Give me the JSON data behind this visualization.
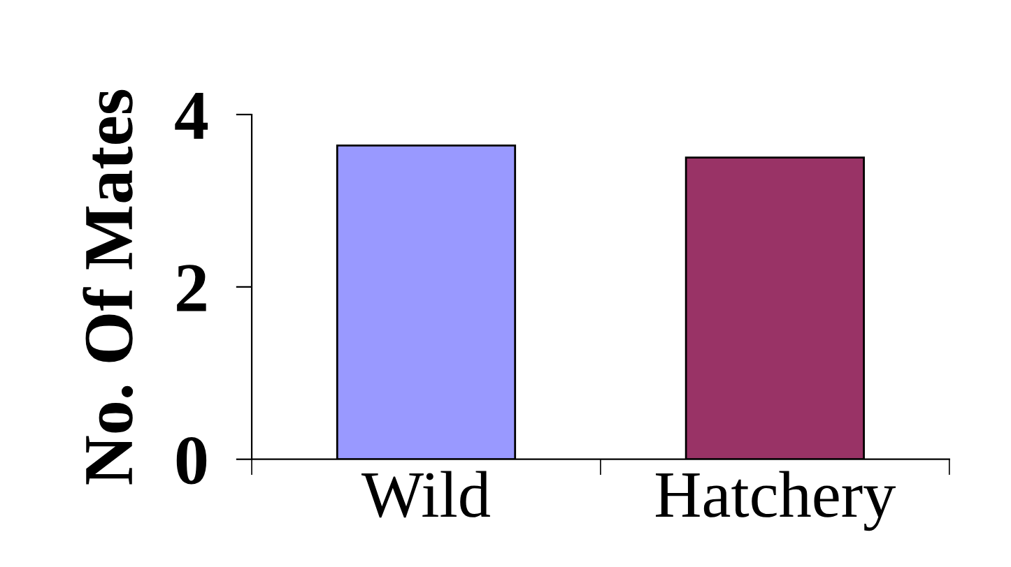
{
  "chart_data": {
    "type": "bar",
    "ylabel": "No. Of Mates",
    "categories": [
      "Wild",
      "Hatchery"
    ],
    "values": [
      3.64,
      3.5
    ],
    "colors": [
      "#9999ff",
      "#993366"
    ],
    "ylim": [
      0,
      4
    ],
    "yticks": [
      0,
      2,
      4
    ],
    "grid": false,
    "legend": false
  }
}
